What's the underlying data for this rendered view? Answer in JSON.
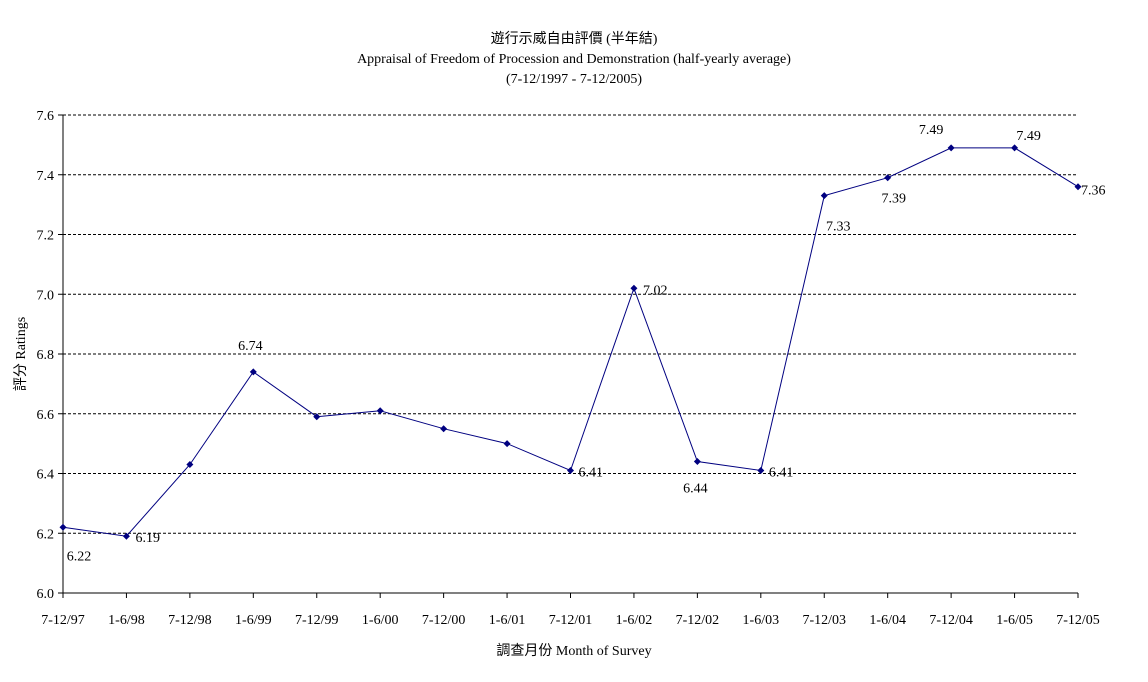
{
  "chart_data": {
    "type": "line",
    "title": "遊行示威自由評價 (半年結)",
    "subtitle": "Appraisal of Freedom of Procession and Demonstration (half-yearly average)",
    "period": "(7-12/1997 - 7-12/2005)",
    "xlabel": "調查月份 Month of Survey",
    "ylabel": "評分 Ratings",
    "ylim": [
      6.0,
      7.6
    ],
    "yticks": [
      "6.0",
      "6.2",
      "6.4",
      "6.6",
      "6.8",
      "7.0",
      "7.2",
      "7.4",
      "7.6"
    ],
    "grid": true,
    "line_color": "#000080",
    "categories": [
      "7-12/97",
      "1-6/98",
      "7-12/98",
      "1-6/99",
      "7-12/99",
      "1-6/00",
      "7-12/00",
      "1-6/01",
      "7-12/01",
      "1-6/02",
      "7-12/02",
      "1-6/03",
      "7-12/03",
      "1-6/04",
      "7-12/04",
      "1-6/05",
      "7-12/05"
    ],
    "values": [
      6.22,
      6.19,
      6.43,
      6.74,
      6.59,
      6.61,
      6.55,
      6.5,
      6.41,
      7.02,
      6.44,
      6.41,
      7.33,
      7.39,
      7.49,
      7.49,
      7.36
    ],
    "data_labels": [
      "6.22",
      "6.19",
      null,
      "6.74",
      null,
      null,
      null,
      null,
      "6.41",
      "7.02",
      "6.44",
      "6.41",
      "7.33",
      "7.39",
      "7.49",
      "7.49",
      "7.36"
    ]
  }
}
